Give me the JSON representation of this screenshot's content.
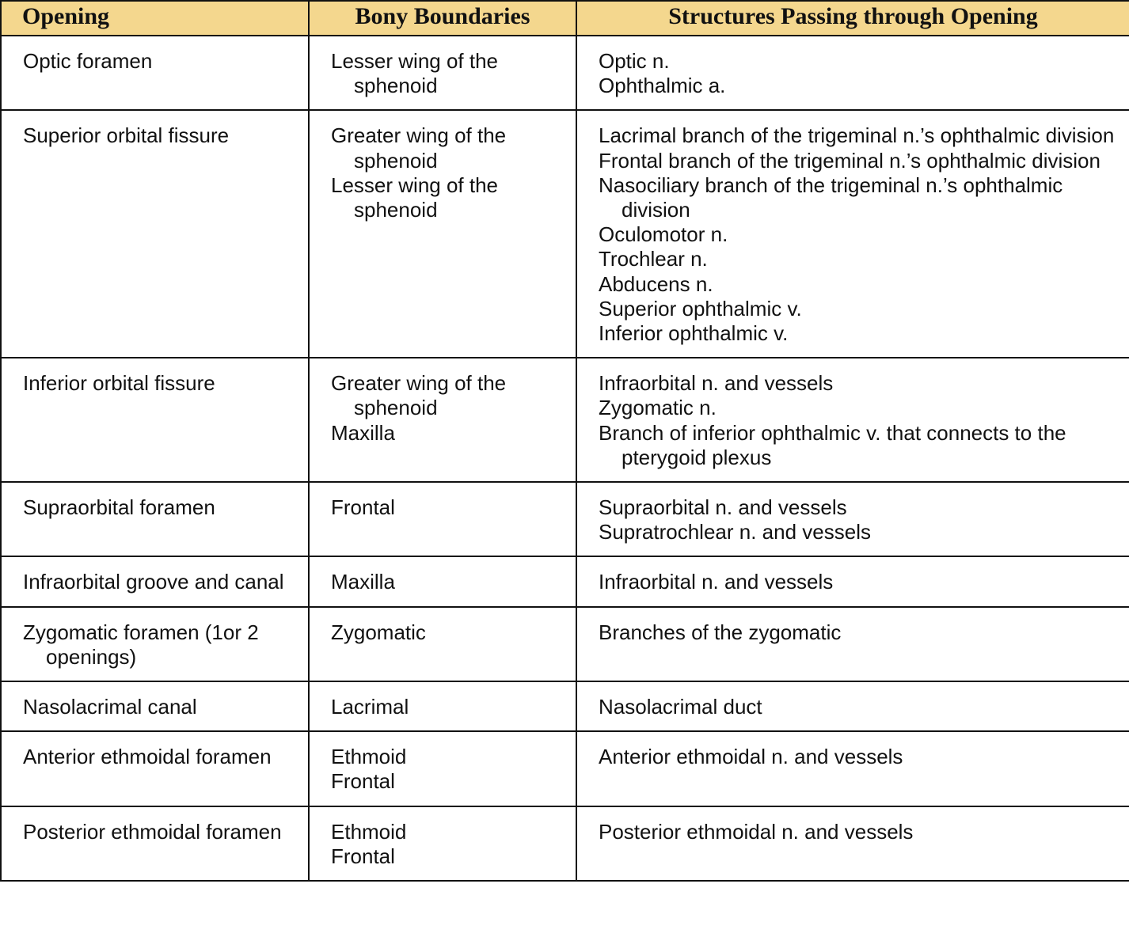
{
  "table": {
    "header": [
      "Opening",
      "Bony Boundaries",
      "Structures Passing through Opening"
    ],
    "rows": [
      {
        "opening": "Optic foramen",
        "bony_boundaries": [
          "Lesser wing of the sphenoid"
        ],
        "structures": [
          "Optic n.",
          "Ophthalmic a."
        ]
      },
      {
        "opening": "Superior orbital fissure",
        "bony_boundaries": [
          "Greater wing of the sphenoid",
          "Lesser wing of the sphenoid"
        ],
        "structures": [
          "Lacrimal branch of the trigeminal n.’s ophthalmic division",
          "Frontal branch of the trigeminal n.’s ophthalmic division",
          "Nasociliary branch of the trigeminal n.’s ophthalmic division",
          "Oculomotor n.",
          "Trochlear n.",
          "Abducens n.",
          "Superior ophthalmic v.",
          "Inferior ophthalmic v."
        ]
      },
      {
        "opening": "Inferior orbital fissure",
        "bony_boundaries": [
          "Greater wing of the sphenoid",
          "Maxilla"
        ],
        "structures": [
          "Infraorbital n. and vessels",
          "Zygomatic n.",
          "Branch of inferior ophthalmic v. that connects to the pterygoid plexus"
        ]
      },
      {
        "opening": "Supraorbital foramen",
        "bony_boundaries": [
          "Frontal"
        ],
        "structures": [
          "Supraorbital n. and vessels",
          "Supratrochlear n. and vessels"
        ]
      },
      {
        "opening": "Infraorbital groove and canal",
        "bony_boundaries": [
          "Maxilla"
        ],
        "structures": [
          "Infraorbital n. and vessels"
        ]
      },
      {
        "opening": "Zygomatic foramen (1or 2 openings)",
        "bony_boundaries": [
          "Zygomatic"
        ],
        "structures": [
          "Branches of the zygomatic"
        ]
      },
      {
        "opening": "Nasolacrimal canal",
        "bony_boundaries": [
          "Lacrimal"
        ],
        "structures": [
          "Nasolacrimal duct"
        ]
      },
      {
        "opening": "Anterior ethmoidal foramen",
        "bony_boundaries": [
          "Ethmoid",
          "Frontal"
        ],
        "structures": [
          "Anterior ethmoidal n. and vessels"
        ]
      },
      {
        "opening": "Posterior ethmoidal foramen",
        "bony_boundaries": [
          "Ethmoid",
          "Frontal"
        ],
        "structures": [
          "Posterior ethmoidal n. and vessels"
        ]
      }
    ]
  }
}
